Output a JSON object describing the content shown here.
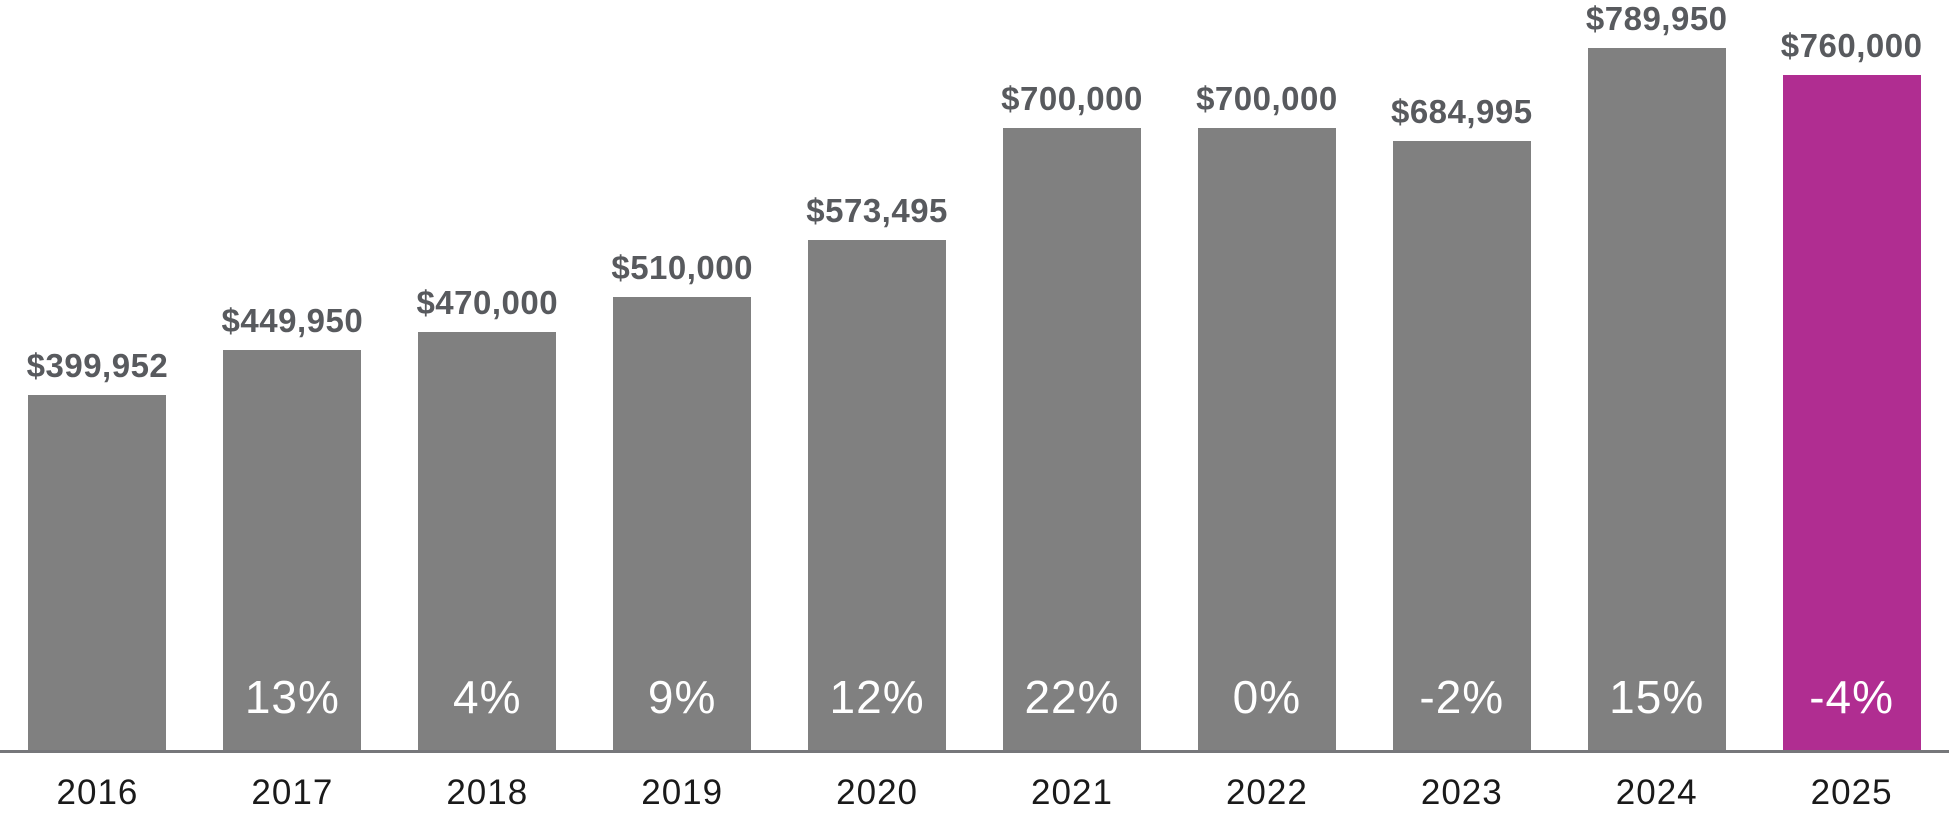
{
  "chart_data": {
    "type": "bar",
    "title": "",
    "xlabel": "",
    "ylabel": "",
    "categories": [
      "2016",
      "2017",
      "2018",
      "2019",
      "2020",
      "2021",
      "2022",
      "2023",
      "2024",
      "2025"
    ],
    "series": [
      {
        "name": "price",
        "values": [
          399952,
          449950,
          470000,
          510000,
          573495,
          700000,
          700000,
          684995,
          789950,
          760000
        ]
      }
    ],
    "value_labels": [
      "$399,952",
      "$449,950",
      "$470,000",
      "$510,000",
      "$573,495",
      "$700,000",
      "$700,000",
      "$684,995",
      "$789,950",
      "$760,000"
    ],
    "pct_change_labels": [
      "",
      "13%",
      "4%",
      "9%",
      "12%",
      "22%",
      "0%",
      "-2%",
      "15%",
      "-4%"
    ],
    "highlight_index": 9,
    "ylim": [
      0,
      789950
    ],
    "grid": "off",
    "legend": "none",
    "colors": {
      "bar_default": "#808080",
      "bar_highlight": "#B02D91",
      "value_label": "#585A5E",
      "pct_label": "#FFFFFF",
      "year_label": "#1A1A1A",
      "baseline": "#76777A"
    }
  }
}
